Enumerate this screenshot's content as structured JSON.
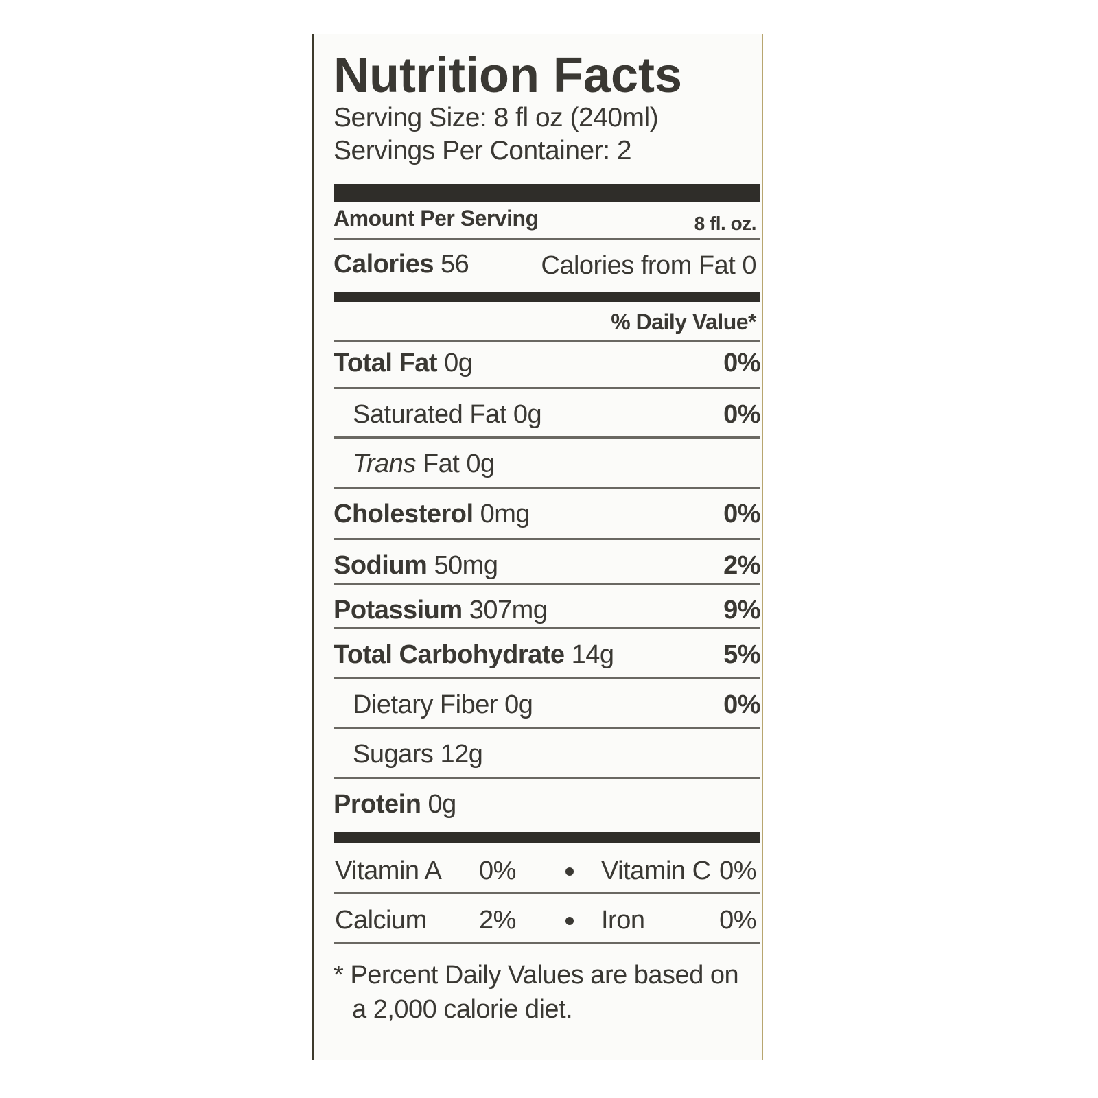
{
  "title": "Nutrition Facts",
  "serving_size": "Serving Size: 8 fl oz (240ml)",
  "servings_per_container": "Servings Per Container: 2",
  "amount_per_serving": "Amount Per Serving",
  "serving_amount": "8 fl. oz.",
  "calories": {
    "label": "Calories",
    "value": "56"
  },
  "calories_from_fat": "Calories from Fat 0",
  "daily_value_header": "% Daily Value*",
  "nutrients": [
    {
      "name": "Total Fat",
      "amount": "0g",
      "dv": "0%",
      "indent": false
    },
    {
      "name": "Saturated Fat",
      "amount": "0g",
      "dv": "0%",
      "indent": true
    },
    {
      "name": "Trans",
      "amount": "Fat 0g",
      "indent": true,
      "italic": true
    },
    {
      "name": "Cholesterol",
      "amount": "0mg",
      "dv": "0%",
      "indent": false
    },
    {
      "name": "Sodium",
      "amount": "50mg",
      "dv": "2%",
      "indent": false
    },
    {
      "name": "Potassium",
      "amount": "307mg",
      "dv": "9%",
      "indent": false
    },
    {
      "name": "Total Carbohydrate",
      "amount": "14g",
      "dv": "5%",
      "indent": false
    },
    {
      "name": "Dietary Fiber",
      "amount": "0g",
      "dv": "0%",
      "indent": true
    },
    {
      "name": "Sugars",
      "amount": "12g",
      "indent": true
    },
    {
      "name": "Protein",
      "amount": "0g",
      "indent": false
    }
  ],
  "vitamins": [
    [
      {
        "name": "Vitamin A",
        "dv": "0%"
      },
      {
        "name": "Vitamin C",
        "dv": "0%"
      }
    ],
    [
      {
        "name": "Calcium",
        "dv": "2%"
      },
      {
        "name": "Iron",
        "dv": "0%"
      }
    ]
  ],
  "footnote": [
    "* Percent Daily Values are based on",
    "a 2,000 calorie diet."
  ]
}
